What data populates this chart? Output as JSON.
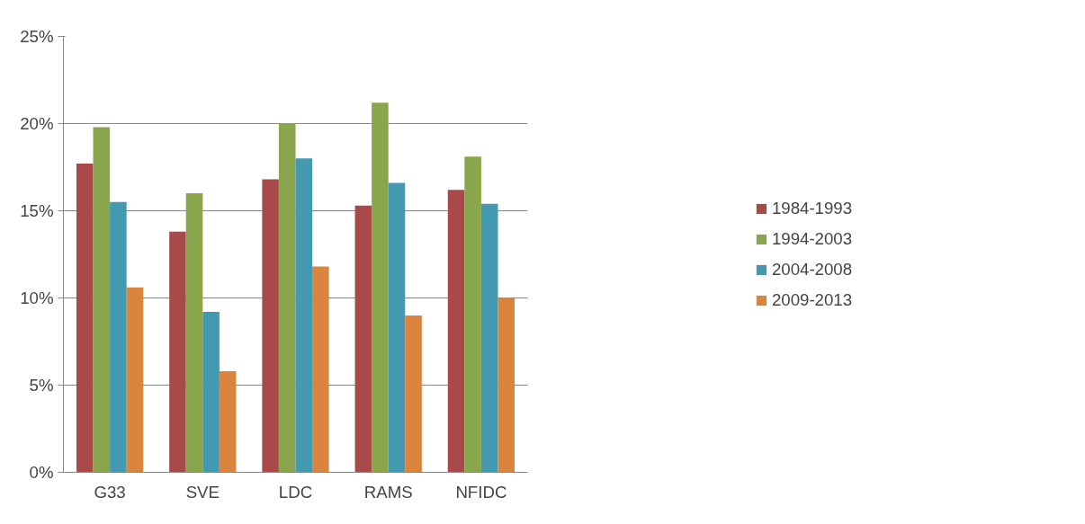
{
  "chart_data": {
    "type": "bar",
    "categories": [
      "G33",
      "SVE",
      "LDC",
      "RAMS",
      "NFIDC"
    ],
    "series": [
      {
        "name": "1984-1993",
        "color": "#a94a4a",
        "values": [
          17.7,
          13.8,
          16.8,
          15.3,
          16.2
        ]
      },
      {
        "name": "1994-2003",
        "color": "#8aa64c",
        "values": [
          19.8,
          16.0,
          20.0,
          21.2,
          18.1
        ]
      },
      {
        "name": "2004-2008",
        "color": "#4299b0",
        "values": [
          15.5,
          9.2,
          18.0,
          16.6,
          15.4
        ]
      },
      {
        "name": "2009-2013",
        "color": "#db843e",
        "values": [
          10.6,
          5.8,
          11.8,
          9.0,
          10.0
        ]
      }
    ],
    "ylim": [
      0,
      25
    ],
    "yticks": [
      {
        "value": 0,
        "label": "0%"
      },
      {
        "value": 5,
        "label": "5%"
      },
      {
        "value": 10,
        "label": "10%"
      },
      {
        "value": 15,
        "label": "15%"
      },
      {
        "value": 20,
        "label": "20%"
      },
      {
        "value": 25,
        "label": "25%"
      }
    ],
    "grid": "y",
    "legend": "right"
  }
}
